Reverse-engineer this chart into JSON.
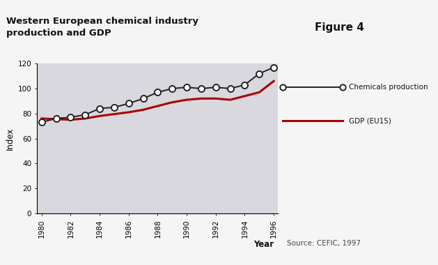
{
  "title_left": "Western European chemical industry\nproduction and GDP",
  "title_right": "Figure 4",
  "xlabel": "Year",
  "ylabel": "Index",
  "source_text": "Source: CEFIC, 1997",
  "xlim": [
    1980,
    1996
  ],
  "ylim": [
    0,
    120
  ],
  "yticks": [
    0,
    20,
    40,
    60,
    80,
    100,
    120
  ],
  "xticks": [
    1980,
    1982,
    1984,
    1986,
    1988,
    1990,
    1992,
    1994,
    1996
  ],
  "chemicals_years": [
    1980,
    1981,
    1982,
    1983,
    1984,
    1985,
    1986,
    1987,
    1988,
    1989,
    1990,
    1991,
    1992,
    1993,
    1994,
    1995,
    1996
  ],
  "chemicals_values": [
    73,
    76,
    77,
    79,
    84,
    85,
    88,
    92,
    97,
    100,
    101,
    100,
    101,
    100,
    103,
    112,
    117
  ],
  "gdp_years": [
    1980,
    1981,
    1982,
    1983,
    1984,
    1985,
    1986,
    1987,
    1988,
    1989,
    1990,
    1991,
    1992,
    1993,
    1994,
    1995,
    1996
  ],
  "gdp_values": [
    76,
    75.5,
    75,
    76,
    78,
    79.5,
    81,
    83,
    86,
    89,
    91,
    92,
    92,
    91,
    94,
    97,
    106
  ],
  "chemicals_color": "#222222",
  "gdp_color": "#aa0000",
  "plot_bg_color": "#d8d8de",
  "header_left_bg": "#e0eaf0",
  "header_right_bg": "#b0cfe0",
  "figure_bg_color": "#f5f5f5",
  "legend_chemicals_label": "Chemicals production",
  "legend_gdp_label": "GDP (EU15)",
  "header_sep_color": "#888888"
}
